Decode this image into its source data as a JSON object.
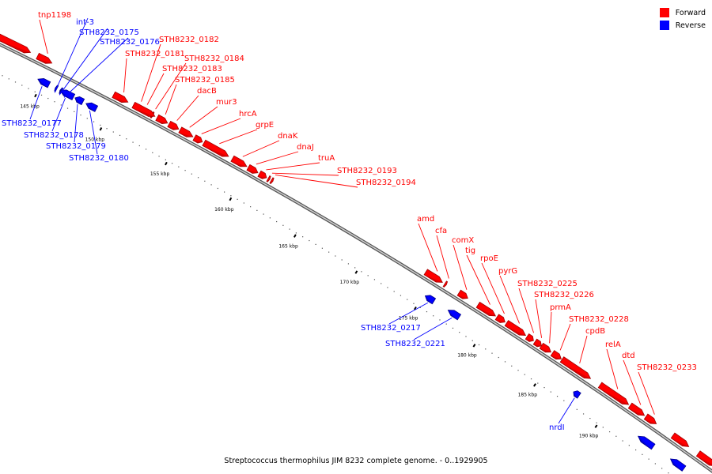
{
  "legend": {
    "forward": {
      "label": "Forward",
      "color": "#ff0000"
    },
    "reverse": {
      "label": "Reverse",
      "color": "#0000ff"
    }
  },
  "caption": "Streptococcus thermophilus JIM 8232 complete genome. - 0..1929905",
  "ticks": [
    "145 kbp",
    "150 kbp",
    "155 kbp",
    "160 kbp",
    "165 kbp",
    "170 kbp",
    "175 kbp",
    "180 kbp",
    "185 kbp",
    "190 kbp"
  ],
  "genes": [
    {
      "name": "tnp1198",
      "strand": "forward"
    },
    {
      "name": "int-3",
      "strand": "reverse"
    },
    {
      "name": "STH8232_0175",
      "strand": "reverse"
    },
    {
      "name": "STH8232_0176",
      "strand": "reverse"
    },
    {
      "name": "STH8232_0182",
      "strand": "forward"
    },
    {
      "name": "STH8232_0181",
      "strand": "forward"
    },
    {
      "name": "STH8232_0184",
      "strand": "forward"
    },
    {
      "name": "STH8232_0183",
      "strand": "forward"
    },
    {
      "name": "STH8232_0185",
      "strand": "forward"
    },
    {
      "name": "dacB",
      "strand": "forward"
    },
    {
      "name": "mur3",
      "strand": "forward"
    },
    {
      "name": "hrcA",
      "strand": "forward"
    },
    {
      "name": "grpE",
      "strand": "forward"
    },
    {
      "name": "dnaK",
      "strand": "forward"
    },
    {
      "name": "dnaJ",
      "strand": "forward"
    },
    {
      "name": "truA",
      "strand": "forward"
    },
    {
      "name": "STH8232_0193",
      "strand": "forward"
    },
    {
      "name": "STH8232_0194",
      "strand": "forward"
    },
    {
      "name": "STH8232_0177",
      "strand": "reverse"
    },
    {
      "name": "STH8232_0178",
      "strand": "reverse"
    },
    {
      "name": "STH8232_0179",
      "strand": "reverse"
    },
    {
      "name": "STH8232_0180",
      "strand": "reverse"
    },
    {
      "name": "amd",
      "strand": "forward"
    },
    {
      "name": "cfa",
      "strand": "forward"
    },
    {
      "name": "comX",
      "strand": "forward"
    },
    {
      "name": "tig",
      "strand": "forward"
    },
    {
      "name": "rpoE",
      "strand": "forward"
    },
    {
      "name": "pyrG",
      "strand": "forward"
    },
    {
      "name": "STH8232_0225",
      "strand": "forward"
    },
    {
      "name": "STH8232_0226",
      "strand": "forward"
    },
    {
      "name": "prmA",
      "strand": "forward"
    },
    {
      "name": "STH8232_0228",
      "strand": "forward"
    },
    {
      "name": "cpdB",
      "strand": "forward"
    },
    {
      "name": "relA",
      "strand": "forward"
    },
    {
      "name": "dtd",
      "strand": "forward"
    },
    {
      "name": "STH8232_0233",
      "strand": "forward"
    },
    {
      "name": "STH8232_0217",
      "strand": "reverse"
    },
    {
      "name": "STH8232_0221",
      "strand": "reverse"
    },
    {
      "name": "nrdI",
      "strand": "reverse"
    }
  ]
}
